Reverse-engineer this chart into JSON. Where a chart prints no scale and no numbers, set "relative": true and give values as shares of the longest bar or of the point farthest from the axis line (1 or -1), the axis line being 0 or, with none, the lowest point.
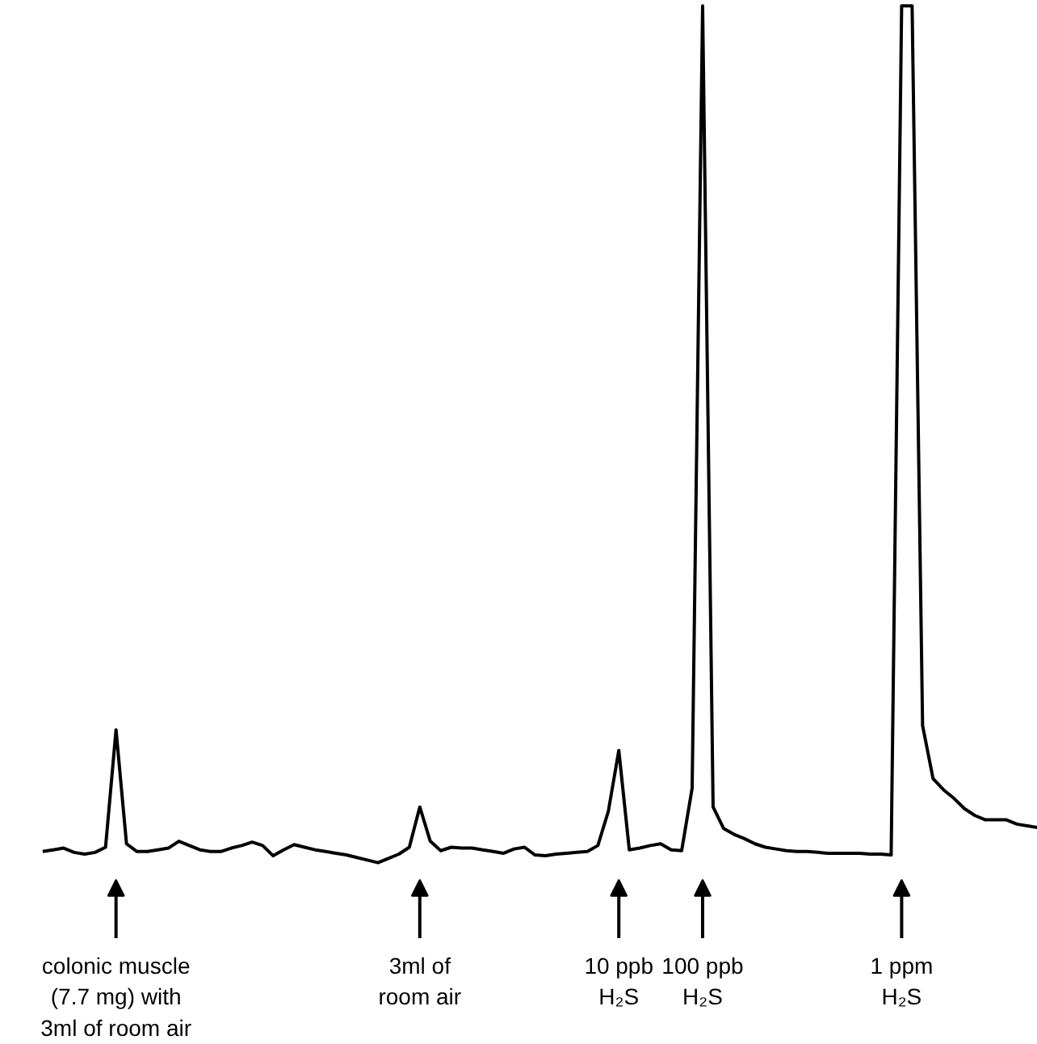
{
  "chart_data": {
    "type": "line",
    "relative": true,
    "tick_labels": "x",
    "grid": false,
    "categories": [
      null,
      null,
      null,
      null,
      null,
      null,
      null,
      "colonic muscle\n(7.7 mg) with\n3ml of room air",
      null,
      null,
      null,
      null,
      null,
      null,
      null,
      null,
      null,
      null,
      null,
      null,
      null,
      null,
      null,
      null,
      null,
      null,
      null,
      null,
      null,
      null,
      null,
      null,
      null,
      null,
      null,
      null,
      "3ml of\nroom air",
      null,
      null,
      null,
      null,
      null,
      null,
      null,
      null,
      null,
      null,
      null,
      null,
      null,
      null,
      null,
      null,
      null,
      null,
      "10 ppb\nH₂S",
      null,
      null,
      null,
      null,
      null,
      null,
      null,
      "100 ppb\nH₂S",
      null,
      null,
      null,
      null,
      null,
      null,
      null,
      null,
      null,
      null,
      null,
      null,
      null,
      null,
      null,
      null,
      null,
      null,
      "1 ppm\nH₂S",
      null,
      null,
      null,
      null,
      null,
      null,
      null,
      null,
      null,
      null,
      null,
      null,
      null
    ],
    "series": [
      {
        "color": "#000000",
        "values": [
          0.013,
          0.015,
          0.017,
          0.012,
          0.01,
          0.012,
          0.018,
          0.155,
          0.022,
          0.013,
          0.013,
          0.015,
          0.017,
          0.025,
          0.02,
          0.015,
          0.013,
          0.013,
          0.017,
          0.02,
          0.024,
          0.02,
          0.008,
          0.015,
          0.021,
          0.018,
          0.015,
          0.013,
          0.011,
          0.009,
          0.006,
          0.003,
          0.0,
          0.005,
          0.01,
          0.018,
          0.065,
          0.025,
          0.014,
          0.018,
          0.017,
          0.017,
          0.015,
          0.013,
          0.011,
          0.016,
          0.018,
          0.009,
          0.008,
          0.01,
          0.011,
          0.012,
          0.013,
          0.02,
          0.06,
          0.131,
          0.015,
          0.017,
          0.02,
          0.022,
          0.015,
          0.014,
          0.087,
          1,
          0.065,
          0.04,
          0.033,
          0.028,
          0.022,
          0.018,
          0.016,
          0.014,
          0.013,
          0.013,
          0.012,
          0.011,
          0.011,
          0.011,
          0.011,
          0.01,
          0.01,
          0.009,
          1,
          1,
          0.16,
          0.098,
          0.085,
          0.075,
          0.063,
          0.055,
          0.05,
          0.05,
          0.05,
          0.045,
          0.043,
          0.041
        ]
      }
    ]
  }
}
